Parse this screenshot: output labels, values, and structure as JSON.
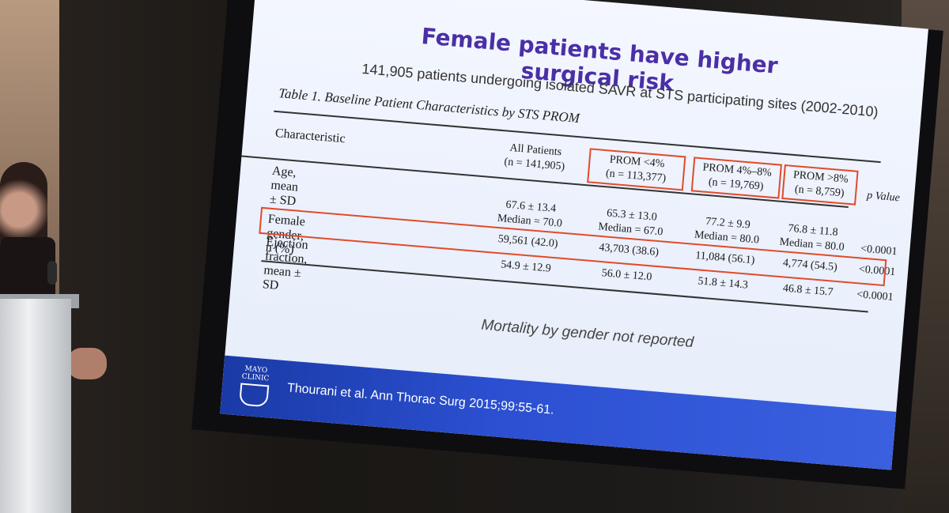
{
  "slide": {
    "title": "Female patients have higher surgical risk",
    "subtitle": "141,905 patients undergoing isolated SAVR at STS participating sites (2002-2010)",
    "table_caption": "Table 1. Baseline Patient Characteristics by STS PROM",
    "columns": {
      "characteristic": "Characteristic",
      "all_l1": "All Patients",
      "all_l2": "(n = 141,905)",
      "low_l1": "PROM <4%",
      "low_l2": "(n = 113,377)",
      "mid_l1": "PROM 4%–8%",
      "mid_l2": "(n = 19,769)",
      "high_l1": "PROM >8%",
      "high_l2": "(n = 8,759)",
      "p": "p Value"
    },
    "rows": {
      "age": {
        "label": "Age, mean ± SD",
        "all_1": "67.6 ± 13.4",
        "all_2": "Median = 70.0",
        "low_1": "65.3 ± 13.0",
        "low_2": "Median = 67.0",
        "mid_1": "77.2 ± 9.9",
        "mid_2": "Median = 80.0",
        "high_1": "76.8 ± 11.8",
        "high_2": "Median = 80.0",
        "p": "<0.0001"
      },
      "female": {
        "label": "Female gender, n (%)",
        "all": "59,561 (42.0)",
        "low": "43,703 (38.6)",
        "mid": "11,084 (56.1)",
        "high": "4,774 (54.5)",
        "p": "<0.0001"
      },
      "ef": {
        "label": "Ejection fraction, mean ± SD",
        "all": "54.9 ± 12.9",
        "low": "56.0 ± 12.0",
        "mid": "51.8 ± 14.3",
        "high": "46.8 ± 15.7",
        "p": "<0.0001"
      }
    },
    "note": "Mortality by gender not reported",
    "footer": {
      "logo_l1": "MAYO",
      "logo_l2": "CLINIC",
      "citation": "Thourani et al. Ann Thorac Surg 2015;99:55-61."
    }
  },
  "colors": {
    "title": "#4b2fa6",
    "highlight_box": "#e24a2a",
    "footer_bar": "#2b4fd0"
  }
}
